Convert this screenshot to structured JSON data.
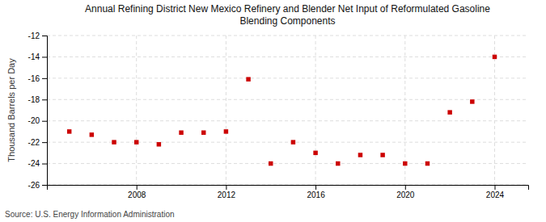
{
  "chart_data": {
    "type": "scatter",
    "title": "Annual Refining District New Mexico Refinery and Blender Net Input of Reformulated Gasoline\nBlending Components",
    "y_label": "Thousand Barrels per Day",
    "annotations": [
      "Source: U.S. Energy Information Administration"
    ],
    "x": [
      2005,
      2006,
      2007,
      2008,
      2009,
      2010,
      2011,
      2012,
      2013,
      2014,
      2015,
      2016,
      2017,
      2018,
      2019,
      2020,
      2021,
      2022,
      2023,
      2024
    ],
    "values": [
      -21.0,
      -21.3,
      -22.0,
      -22.0,
      -22.2,
      -21.1,
      -21.1,
      -21.0,
      -16.1,
      -24.0,
      -22.0,
      -23.0,
      -24.0,
      -23.2,
      -23.2,
      -24.0,
      -24.0,
      -19.2,
      -18.2,
      -14.0
    ],
    "color": "#cc0000",
    "marker": "square",
    "xlim": [
      2004.0,
      2025.5
    ],
    "xticks": [
      2008,
      2012,
      2016,
      2020,
      2024
    ],
    "ylim": [
      -26,
      -12
    ],
    "yticks": [
      -12,
      -14,
      -16,
      -18,
      -20,
      -22,
      -24,
      -26
    ],
    "grid": true
  }
}
